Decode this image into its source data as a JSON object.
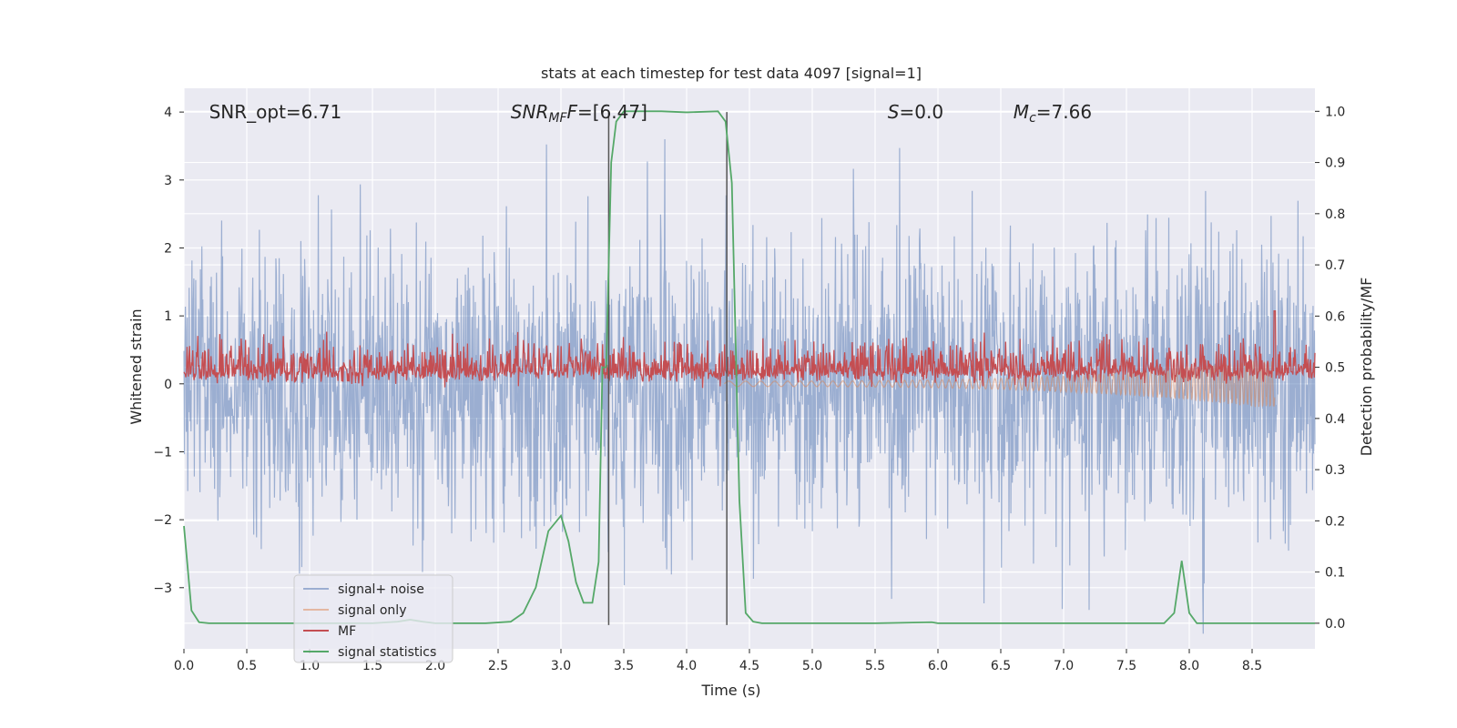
{
  "chart_data": {
    "type": "line",
    "title": "stats at each timestep for test data 4097 [signal=1]",
    "xlabel": "Time (s)",
    "ylabel_left": "Whitened strain",
    "ylabel_right": "Detection probability/MF",
    "xlim": [
      0.0,
      9.0
    ],
    "ylim_left": [
      -3.9,
      4.35
    ],
    "ylim_right": [
      -0.05,
      1.045
    ],
    "x_ticks": [
      "0.0",
      "0.5",
      "1.0",
      "1.5",
      "2.0",
      "2.5",
      "3.0",
      "3.5",
      "4.0",
      "4.5",
      "5.0",
      "5.5",
      "6.0",
      "6.5",
      "7.0",
      "7.5",
      "8.0",
      "8.5"
    ],
    "x_tick_values": [
      0,
      0.5,
      1,
      1.5,
      2,
      2.5,
      3,
      3.5,
      4,
      4.5,
      5,
      5.5,
      6,
      6.5,
      7,
      7.5,
      8,
      8.5
    ],
    "y_left_ticks": [
      "−3",
      "−2",
      "−1",
      "0",
      "1",
      "2",
      "3",
      "4"
    ],
    "y_left_tick_values": [
      -3,
      -2,
      -1,
      0,
      1,
      2,
      3,
      4
    ],
    "y_right_ticks": [
      "0.0",
      "0.1",
      "0.2",
      "0.3",
      "0.4",
      "0.5",
      "0.6",
      "0.7",
      "0.8",
      "0.9",
      "1.0"
    ],
    "y_right_tick_values": [
      0,
      0.1,
      0.2,
      0.3,
      0.4,
      0.5,
      0.6,
      0.7,
      0.8,
      0.9,
      1.0
    ],
    "annotations": [
      {
        "text": "SNR_opt=6.71",
        "x": 0.2,
        "y": 4.0,
        "style": "normal"
      },
      {
        "text_parts": [
          [
            "SNR",
            "i"
          ],
          [
            "MF",
            "i-sub"
          ],
          [
            "F",
            "i"
          ],
          [
            "=[6.47]",
            "n"
          ]
        ],
        "x": 2.6,
        "y": 4.0
      },
      {
        "text_parts": [
          [
            "S",
            "i"
          ],
          [
            "=0.0",
            "n"
          ]
        ],
        "x": 5.6,
        "y": 4.0
      },
      {
        "text_parts": [
          [
            "M",
            "i"
          ],
          [
            "c",
            "i-sub"
          ],
          [
            "=7.66",
            "n"
          ]
        ],
        "x": 6.6,
        "y": 4.0
      }
    ],
    "vlines": [
      {
        "x": 3.38,
        "y_range": [
          -3.55,
          4.0
        ]
      },
      {
        "x": 4.32,
        "y_range": [
          -3.55,
          4.0
        ]
      }
    ],
    "series": [
      {
        "name": "signal+ noise",
        "color": "#4c72b0",
        "alpha": 0.5,
        "axis": "left",
        "kind": "noise",
        "amplitude": 1.0,
        "max_abs_peak": 4.0,
        "n_points": 2400
      },
      {
        "name": "signal only",
        "color": "#dd8452",
        "alpha": 0.5,
        "axis": "left",
        "kind": "chirp",
        "t_start": 4.3,
        "t_merge": 8.68,
        "amp_start": 0.08,
        "amp_merge": 0.75
      },
      {
        "name": "MF",
        "color": "#c44e52",
        "axis": "right",
        "kind": "noise-positive",
        "baseline": 0.493,
        "spread": 0.03,
        "peak": {
          "x": 8.68,
          "y": 0.61
        }
      },
      {
        "name": "signal statistics",
        "color": "#55a868",
        "axis": "right",
        "kind": "line",
        "x": [
          0.0,
          0.06,
          0.12,
          0.2,
          0.5,
          1.0,
          1.5,
          1.7,
          1.8,
          1.9,
          2.0,
          2.4,
          2.6,
          2.7,
          2.8,
          2.9,
          3.0,
          3.06,
          3.12,
          3.18,
          3.25,
          3.3,
          3.33,
          3.36,
          3.4,
          3.44,
          3.5,
          3.8,
          4.0,
          4.25,
          4.31,
          4.36,
          4.42,
          4.47,
          4.53,
          4.6,
          5.0,
          5.5,
          5.95,
          6.0,
          6.5,
          7.0,
          7.5,
          7.8,
          7.88,
          7.94,
          8.0,
          8.06,
          8.5,
          9.0
        ],
        "y": [
          0.19,
          0.025,
          0.002,
          0.0,
          0.0,
          0.0,
          0.0,
          0.003,
          0.007,
          0.003,
          0.0,
          0.0,
          0.003,
          0.02,
          0.07,
          0.18,
          0.21,
          0.16,
          0.08,
          0.04,
          0.04,
          0.12,
          0.5,
          0.5,
          0.9,
          0.98,
          1.0,
          1.0,
          0.998,
          1.0,
          0.98,
          0.86,
          0.24,
          0.02,
          0.003,
          0.0,
          0.0,
          0.0,
          0.002,
          0.0,
          0.0,
          0.0,
          0.0,
          0.0,
          0.02,
          0.122,
          0.02,
          0.0,
          0.0,
          0.0
        ]
      }
    ],
    "legend": {
      "placement": "lower-left",
      "entries": [
        {
          "label": "signal+ noise",
          "color": "#4c72b0",
          "alpha": 0.5
        },
        {
          "label": "signal only",
          "color": "#dd8452",
          "alpha": 0.5
        },
        {
          "label": "MF",
          "color": "#c44e52",
          "alpha": 1
        },
        {
          "label": "signal statistics",
          "color": "#55a868",
          "alpha": 1
        }
      ]
    },
    "grid": true,
    "background": "#eaeaf2",
    "vline_color": "#555555"
  }
}
